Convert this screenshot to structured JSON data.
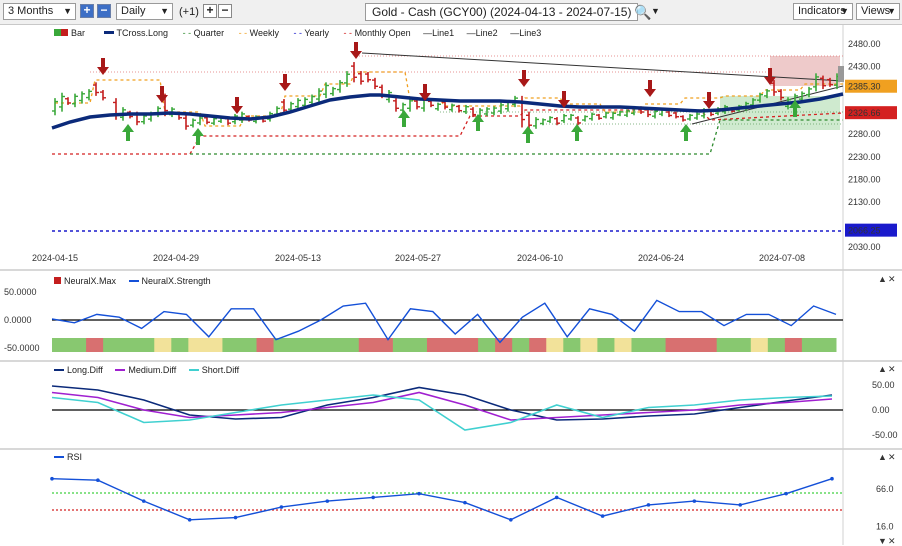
{
  "toolbar": {
    "period": "3 Months",
    "interval": "Daily",
    "offset": "(+1)",
    "title": "Gold - Cash (GCY00) (2024-04-13 - 2024-07-15)",
    "indicators": "Indicators",
    "views": "Views"
  },
  "main_legend": {
    "bar": "Bar",
    "tcross": "TCross.Long",
    "quarter": "Quarter",
    "weekly": "Weekly",
    "yearly": "Yearly",
    "monthly": "Monthly Open",
    "line1": "Line1",
    "line2": "Line2",
    "line3": "Line3"
  },
  "price_axis": {
    "ticks": [
      "2480.00",
      "2430.00",
      "2385.30",
      "2326.66",
      "2280.00",
      "2230.00",
      "2180.00",
      "2130.00",
      "2066.25",
      "2030.00"
    ],
    "current": "2385.30",
    "monthly_open": "2326.66",
    "yearly": "2066.25"
  },
  "dates": [
    "2024-04-15",
    "2024-04-29",
    "2024-05-13",
    "2024-05-27",
    "2024-06-10",
    "2024-06-24",
    "2024-07-08"
  ],
  "neural_legend": {
    "max": "NeuralX.Max",
    "strength": "NeuralX.Strength"
  },
  "neural_axis": [
    "50.0000",
    "0.0000",
    "-50.0000"
  ],
  "diff_legend": {
    "long": "Long.Diff",
    "medium": "Medium.Diff",
    "short": "Short.Diff"
  },
  "diff_axis": [
    "50.00",
    "0.00",
    "-50.00"
  ],
  "rsi_legend": {
    "rsi": "RSI"
  },
  "rsi_axis": [
    "66.0",
    "16.0"
  ],
  "colors": {
    "bull": "#3aa83a",
    "bear": "#c41e1e",
    "tcross": "#0b2a7a",
    "quarter": "#2e8b2e",
    "weekly": "#f0a020",
    "yearly": "#1a1acc",
    "monthly": "#d42020",
    "strength": "#1450d8",
    "medium": "#a020d0",
    "short": "#40d0d0"
  },
  "chart_data": [
    {
      "type": "line",
      "title": "Gold - Cash (GCY00) (2024-04-13 - 2024-07-15)",
      "x": [
        "2024-04-15",
        "2024-04-29",
        "2024-05-13",
        "2024-05-27",
        "2024-06-10",
        "2024-06-24",
        "2024-07-08"
      ],
      "series": [
        {
          "name": "TCross.Long",
          "values": [
            2283,
            2316,
            2340,
            2368,
            2344,
            2338,
            2372
          ]
        }
      ],
      "yearly": 2066.25,
      "monthly_open": 2326.66,
      "last_price": 2385.3,
      "ylim": [
        2030,
        2480
      ]
    },
    {
      "type": "line",
      "title": "",
      "series": [
        {
          "name": "NeuralX.Strength",
          "values": [
            2,
            -5,
            10,
            5,
            -15,
            15,
            10,
            -30,
            20,
            20,
            -35,
            -20,
            0,
            25,
            30,
            -35,
            20,
            15,
            -25,
            10,
            -40,
            5,
            30,
            -30,
            20,
            10,
            -20,
            35,
            15,
            15,
            -10,
            10,
            10,
            -10,
            25,
            10
          ]
        }
      ],
      "ylim": [
        -50,
        50
      ]
    },
    {
      "type": "line",
      "title": "",
      "series": [
        {
          "name": "Long.Diff",
          "values": [
            48,
            40,
            20,
            -10,
            -18,
            -15,
            10,
            25,
            45,
            30,
            0,
            -20,
            -18,
            -12,
            -8,
            5,
            18,
            30
          ]
        },
        {
          "name": "Medium.Diff",
          "values": [
            35,
            25,
            0,
            -15,
            -10,
            -5,
            5,
            15,
            35,
            10,
            -20,
            -15,
            -10,
            -5,
            0,
            10,
            15,
            22
          ]
        },
        {
          "name": "Short.Diff",
          "values": [
            25,
            15,
            -25,
            -20,
            -5,
            10,
            20,
            30,
            20,
            -40,
            -25,
            10,
            -15,
            5,
            10,
            20,
            25,
            28
          ]
        }
      ],
      "ylim": [
        -55,
        60
      ]
    },
    {
      "type": "line",
      "title": "",
      "series": [
        {
          "name": "RSI",
          "values": [
            80,
            78,
            50,
            25,
            28,
            42,
            50,
            55,
            60,
            48,
            25,
            55,
            30,
            45,
            50,
            45,
            60,
            80
          ]
        }
      ],
      "ylim": [
        10,
        95
      ]
    }
  ]
}
